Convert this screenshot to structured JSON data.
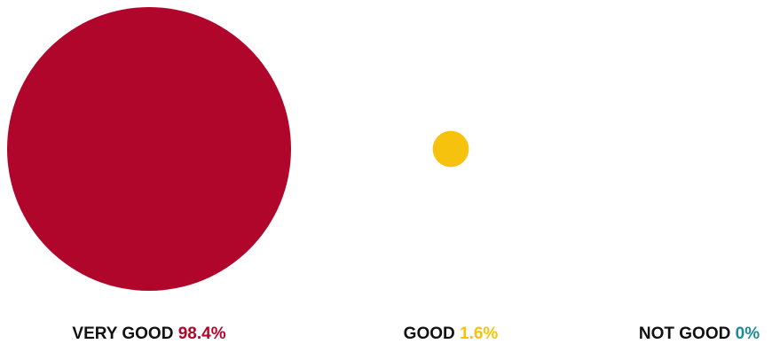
{
  "chart_data": {
    "type": "bubble",
    "categories": [
      "VERY GOOD",
      "GOOD",
      "NOT GOOD"
    ],
    "values": [
      98.4,
      1.6,
      0
    ],
    "value_labels": [
      "98.4%",
      "1.6%",
      "0%"
    ],
    "unit": "%",
    "colors": [
      "#b0062b",
      "#f7c20d",
      "#1d8a99"
    ],
    "label_color": "#111111"
  }
}
